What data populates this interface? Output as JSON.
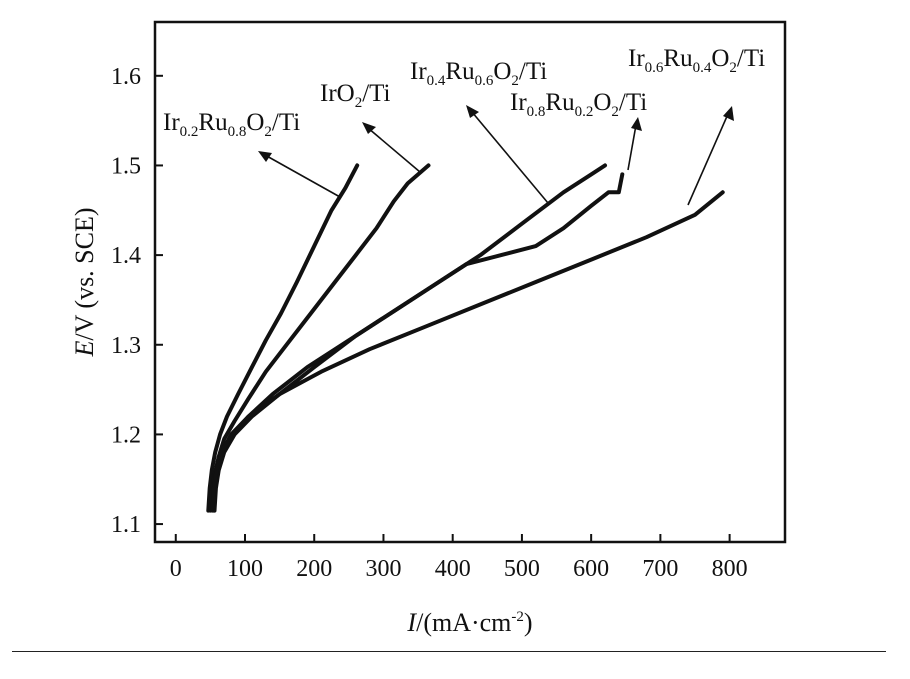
{
  "chart_data": {
    "type": "line",
    "title": "",
    "xlabel": {
      "var": "I",
      "rest": "/(mA·cm",
      "sup": "-2",
      "end": ")"
    },
    "ylabel": {
      "var": "E",
      "rest": "/V (vs. SCE)"
    },
    "xlim": [
      -30,
      880
    ],
    "ylim": [
      1.08,
      1.66
    ],
    "xticks": [
      0,
      100,
      200,
      300,
      400,
      500,
      600,
      700,
      800
    ],
    "yticks": [
      1.1,
      1.2,
      1.3,
      1.4,
      1.5,
      1.6
    ],
    "grid": false,
    "legend": "inline labels with leader arrows",
    "series": [
      {
        "name": "Ir0.2Ru0.8O2/Ti",
        "label_parts": [
          [
            "Ir",
            ""
          ],
          [
            "0.2",
            "sub"
          ],
          [
            "Ru",
            ""
          ],
          [
            "0.8",
            "sub"
          ],
          [
            "O",
            ""
          ],
          [
            "2",
            "sub"
          ],
          [
            "/Ti",
            ""
          ]
        ],
        "x": [
          47,
          49,
          52,
          57,
          64,
          74,
          90,
          110,
          130,
          152,
          175,
          200,
          225,
          245,
          262
        ],
        "y": [
          1.115,
          1.14,
          1.16,
          1.18,
          1.2,
          1.22,
          1.245,
          1.275,
          1.305,
          1.335,
          1.37,
          1.41,
          1.45,
          1.475,
          1.5
        ]
      },
      {
        "name": "IrO2/Ti",
        "label_parts": [
          [
            "IrO",
            ""
          ],
          [
            "2",
            "sub"
          ],
          [
            "/Ti",
            ""
          ]
        ],
        "x": [
          50,
          52,
          56,
          62,
          70,
          85,
          105,
          130,
          160,
          195,
          230,
          260,
          290,
          315,
          335,
          350,
          365
        ],
        "y": [
          1.115,
          1.135,
          1.155,
          1.175,
          1.195,
          1.215,
          1.24,
          1.27,
          1.3,
          1.335,
          1.37,
          1.4,
          1.43,
          1.46,
          1.48,
          1.49,
          1.5
        ]
      },
      {
        "name": "Ir0.4Ru0.6O2/Ti",
        "label_parts": [
          [
            "Ir",
            ""
          ],
          [
            "0.4",
            "sub"
          ],
          [
            "Ru",
            ""
          ],
          [
            "0.6",
            "sub"
          ],
          [
            "O",
            ""
          ],
          [
            "2",
            "sub"
          ],
          [
            "/Ti",
            ""
          ]
        ],
        "x": [
          56,
          58,
          62,
          70,
          85,
          110,
          150,
          200,
          260,
          320,
          380,
          440,
          500,
          560,
          600,
          620
        ],
        "y": [
          1.115,
          1.14,
          1.16,
          1.18,
          1.2,
          1.22,
          1.245,
          1.275,
          1.31,
          1.34,
          1.37,
          1.4,
          1.435,
          1.47,
          1.49,
          1.5
        ]
      },
      {
        "name": "Ir0.8Ru0.2O2/Ti",
        "label_parts": [
          [
            "Ir",
            ""
          ],
          [
            "0.8",
            "sub"
          ],
          [
            "Ru",
            ""
          ],
          [
            "0.2",
            "sub"
          ],
          [
            "O",
            ""
          ],
          [
            "2",
            "sub"
          ],
          [
            "/Ti",
            ""
          ]
        ],
        "x": [
          55,
          57,
          61,
          68,
          82,
          105,
          140,
          190,
          240,
          300,
          360,
          420,
          470,
          520,
          560,
          600,
          625,
          640,
          645
        ],
        "y": [
          1.115,
          1.14,
          1.16,
          1.18,
          1.2,
          1.22,
          1.245,
          1.275,
          1.3,
          1.33,
          1.36,
          1.39,
          1.4,
          1.41,
          1.43,
          1.455,
          1.47,
          1.47,
          1.49
        ]
      },
      {
        "name": "Ir0.6Ru0.4O2/Ti",
        "label_parts": [
          [
            "Ir",
            ""
          ],
          [
            "0.6",
            "sub"
          ],
          [
            "Ru",
            ""
          ],
          [
            "0.4",
            "sub"
          ],
          [
            "O",
            ""
          ],
          [
            "2",
            "sub"
          ],
          [
            "/Ti",
            ""
          ]
        ],
        "x": [
          53,
          55,
          59,
          66,
          80,
          105,
          150,
          210,
          280,
          360,
          440,
          520,
          600,
          680,
          750,
          790
        ],
        "y": [
          1.115,
          1.14,
          1.16,
          1.18,
          1.2,
          1.22,
          1.245,
          1.27,
          1.295,
          1.32,
          1.345,
          1.37,
          1.395,
          1.42,
          1.445,
          1.47
        ]
      }
    ]
  }
}
